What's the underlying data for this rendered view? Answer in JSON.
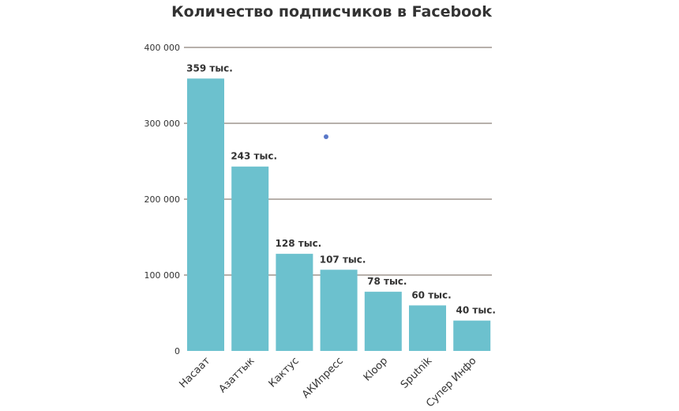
{
  "chart_data": {
    "type": "bar",
    "title": "Количество подписчиков в Facebook",
    "categories": [
      "Насаат",
      "Азаттык",
      "Кактус",
      "АКИпресс",
      "Kloop",
      "Sputnik",
      "Супер Инфо"
    ],
    "values": [
      359000,
      243000,
      128000,
      107000,
      78000,
      60000,
      40000
    ],
    "data_labels": [
      "359 тыс.",
      "243 тыс.",
      "128 тыс.",
      "107 тыс.",
      "78 тыс.",
      "60 тыс.",
      "40 тыс."
    ],
    "y_ticks": [
      0,
      100000,
      200000,
      300000,
      400000
    ],
    "y_tick_labels": [
      "0",
      "100 000",
      "200 000",
      "300 000",
      "400 000"
    ],
    "ylim": [
      0,
      400000
    ],
    "grid": true,
    "legend": "none",
    "colors": {
      "bar": "#6cc1ce",
      "grid": "#8c8079",
      "text": "#333333",
      "marker": "#5a78c8"
    }
  }
}
